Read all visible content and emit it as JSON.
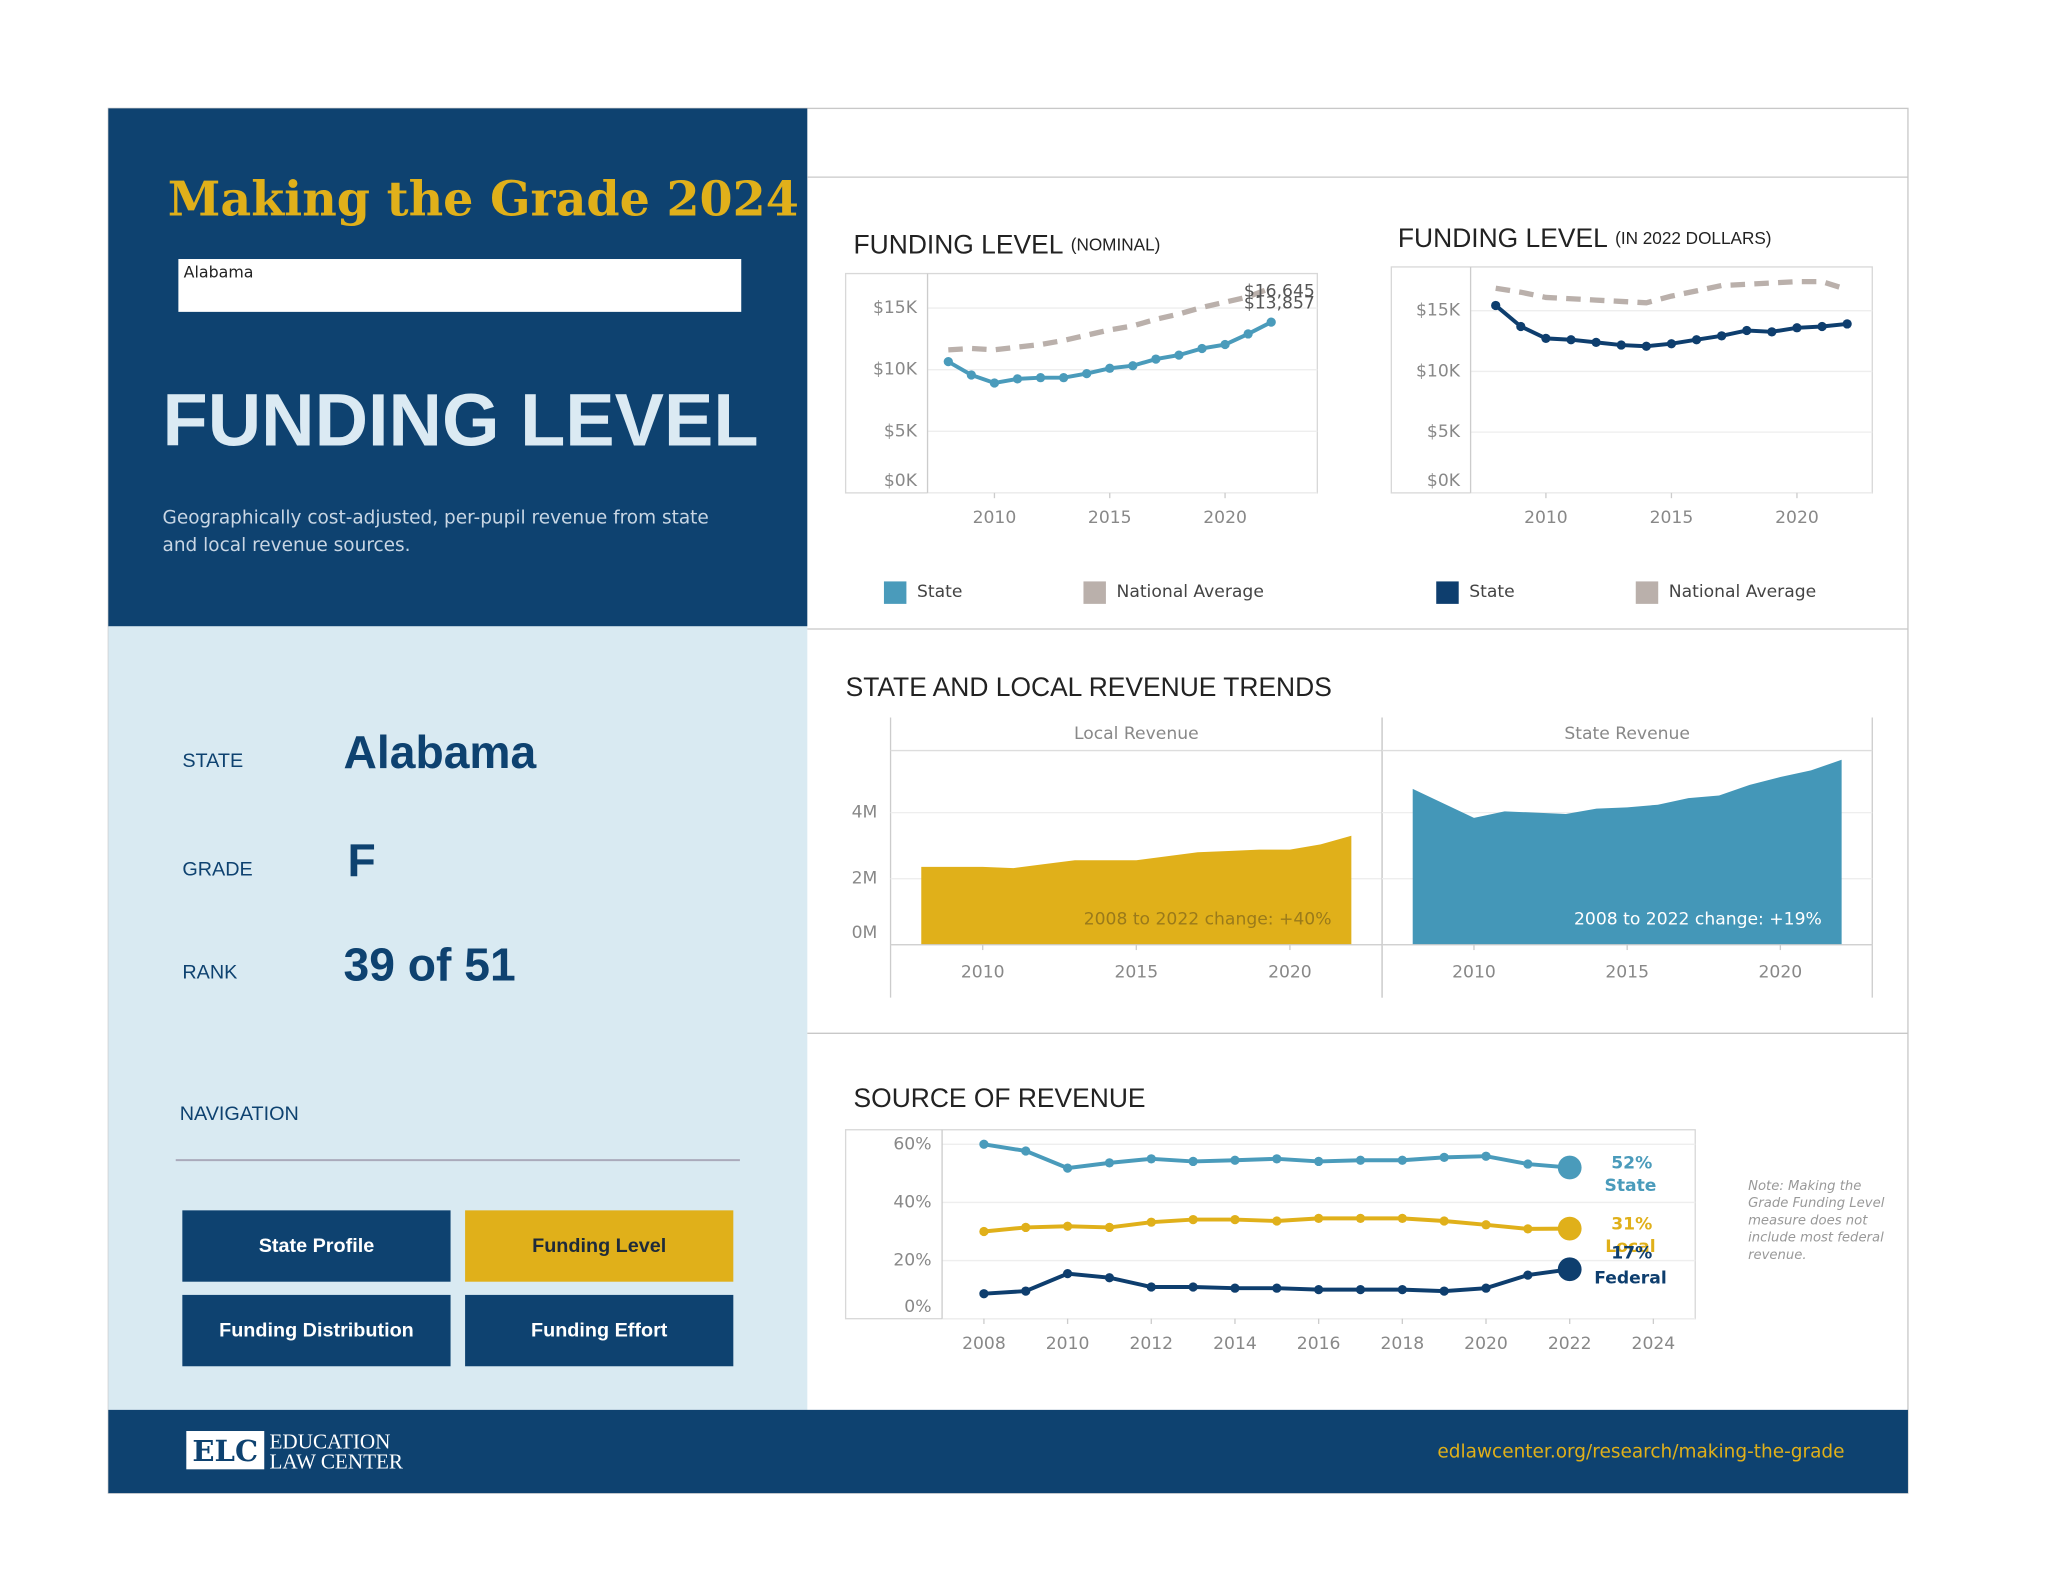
{
  "header": {
    "title": "Making the Grade 2024",
    "state_select": "Alabama",
    "page_title": "FUNDING LEVEL",
    "description": [
      "Geographically cost-adjusted, per-pupil revenue from state",
      "and local revenue sources."
    ]
  },
  "profile": {
    "rows": [
      {
        "label": "STATE",
        "value": "Alabama"
      },
      {
        "label": "GRADE",
        "value": "F"
      },
      {
        "label": "RANK",
        "value": "39 of 51"
      }
    ]
  },
  "navigation": {
    "label": "NAVIGATION",
    "buttons": [
      "State Profile",
      "Funding Level",
      "Funding Distribution",
      "Funding Effort"
    ],
    "active": 1
  },
  "note": [
    "Note: Making the",
    "Grade Funding Level",
    "measure does not",
    "include most federal",
    "revenue."
  ],
  "footer": {
    "logo": "ELC",
    "org": [
      "EDUCATION",
      "LAW CENTER"
    ],
    "url": "edlawcenter.org/research/making-the-grade"
  },
  "chart_data": [
    {
      "type": "line",
      "title": "FUNDING LEVEL",
      "subtitle": "(NOMINAL)",
      "x": [
        2008,
        2009,
        2010,
        2011,
        2012,
        2013,
        2014,
        2015,
        2016,
        2017,
        2018,
        2019,
        2020,
        2021,
        2022
      ],
      "xlim": [
        2007.1,
        2024
      ],
      "xticks": [
        2010,
        2015,
        2020
      ],
      "ylim": [
        0,
        17800
      ],
      "yticks": [
        {
          "value": 0,
          "label": "$0K"
        },
        {
          "value": 5000,
          "label": "$5K"
        },
        {
          "value": 10000,
          "label": "$10K"
        },
        {
          "value": 15000,
          "label": "$15K"
        }
      ],
      "grid": true,
      "legend": "bottom",
      "series": [
        {
          "name": "State",
          "color": "#4a9bbb",
          "style": "solid",
          "values": [
            10650,
            9570,
            8920,
            9250,
            9350,
            9350,
            9680,
            10110,
            10320,
            10860,
            11180,
            11720,
            12040,
            12900,
            13857
          ],
          "value_labels": [
            null,
            null,
            null,
            null,
            null,
            null,
            null,
            null,
            null,
            null,
            null,
            null,
            null,
            null,
            "$13,857"
          ]
        },
        {
          "name": "National Average",
          "color": "#bab0ab",
          "style": "dashed",
          "values": [
            11610,
            11720,
            11610,
            11830,
            12040,
            12370,
            12800,
            13230,
            13550,
            14090,
            14520,
            15050,
            15480,
            15910,
            16645
          ],
          "value_labels": [
            null,
            null,
            null,
            null,
            null,
            null,
            null,
            null,
            null,
            null,
            null,
            null,
            null,
            null,
            "$16,645"
          ]
        }
      ]
    },
    {
      "type": "line",
      "title": "FUNDING LEVEL",
      "subtitle": "(IN 2022 DOLLARS)",
      "x": [
        2008,
        2009,
        2010,
        2011,
        2012,
        2013,
        2014,
        2015,
        2016,
        2017,
        2018,
        2019,
        2020,
        2021,
        2022
      ],
      "xlim": [
        2007,
        2023
      ],
      "xticks": [
        2010,
        2015,
        2020
      ],
      "ylim": [
        0,
        18600
      ],
      "yticks": [
        {
          "value": 0,
          "label": "$0K"
        },
        {
          "value": 5000,
          "label": "$5K"
        },
        {
          "value": 10000,
          "label": "$10K"
        },
        {
          "value": 15000,
          "label": "$15K"
        }
      ],
      "grid": true,
      "legend": "bottom",
      "series": [
        {
          "name": "State",
          "color": "#0e3e6e",
          "style": "solid",
          "values": [
            15430,
            13700,
            12720,
            12610,
            12390,
            12170,
            12070,
            12280,
            12610,
            12930,
            13370,
            13260,
            13590,
            13700,
            13910
          ]
        },
        {
          "name": "National Average",
          "color": "#bab0ab",
          "style": "dashed",
          "values": [
            16850,
            16520,
            16090,
            15980,
            15870,
            15760,
            15650,
            16200,
            16630,
            17070,
            17170,
            17280,
            17390,
            17390,
            16740
          ]
        }
      ]
    },
    {
      "type": "area",
      "title": "STATE AND LOCAL REVENUE TRENDS",
      "x": [
        2008,
        2009,
        2010,
        2011,
        2012,
        2013,
        2014,
        2015,
        2016,
        2017,
        2018,
        2019,
        2020,
        2021,
        2022
      ],
      "xlim": [
        2007,
        2023
      ],
      "xticks": [
        2010,
        2015,
        2020
      ],
      "ylim": [
        0,
        5880000
      ],
      "yticks": [
        {
          "value": 0,
          "label": "0M"
        },
        {
          "value": 2000000,
          "label": "2M"
        },
        {
          "value": 4000000,
          "label": "4M"
        }
      ],
      "grid": true,
      "facets": [
        {
          "name": "Local Revenue",
          "color": "#e0b01a",
          "values": [
            2360000,
            2360000,
            2360000,
            2320000,
            2440000,
            2560000,
            2560000,
            2560000,
            2680000,
            2800000,
            2840000,
            2880000,
            2880000,
            3040000,
            3300000
          ],
          "annotation": "2008 to 2022 change: +40%"
        },
        {
          "name": "State Revenue",
          "color": "#4497b8",
          "values": [
            4720000,
            4280000,
            3840000,
            4040000,
            4000000,
            3960000,
            4120000,
            4160000,
            4240000,
            4440000,
            4520000,
            4840000,
            5080000,
            5280000,
            5600000
          ],
          "annotation": "2008 to 2022 change: +19%"
        }
      ]
    },
    {
      "type": "line",
      "title": "SOURCE OF REVENUE",
      "x": [
        2008,
        2009,
        2010,
        2011,
        2012,
        2013,
        2014,
        2015,
        2016,
        2017,
        2018,
        2019,
        2020,
        2021,
        2022
      ],
      "xlim": [
        2007,
        2025
      ],
      "xticks": [
        2008,
        2010,
        2012,
        2014,
        2016,
        2018,
        2020,
        2022,
        2024
      ],
      "ylim": [
        0,
        65
      ],
      "yticks": [
        {
          "value": 0,
          "label": "0%"
        },
        {
          "value": 20,
          "label": "20%"
        },
        {
          "value": 40,
          "label": "40%"
        },
        {
          "value": 60,
          "label": "60%"
        }
      ],
      "grid": true,
      "legend": "end-labels",
      "series": [
        {
          "name": "State",
          "color": "#4a9bbb",
          "style": "solid",
          "values": [
            60,
            57.7,
            51.8,
            53.6,
            55,
            54.1,
            54.5,
            55,
            54.1,
            54.5,
            54.5,
            55.5,
            55.9,
            53.2,
            52
          ],
          "value_labels": [
            null,
            null,
            null,
            null,
            null,
            null,
            null,
            null,
            null,
            null,
            null,
            null,
            null,
            null,
            "52%"
          ]
        },
        {
          "name": "Local",
          "color": "#e0b01a",
          "style": "solid",
          "values": [
            30,
            31.4,
            31.8,
            31.4,
            33.2,
            34.1,
            34.1,
            33.6,
            34.5,
            34.5,
            34.5,
            33.6,
            32.3,
            30.9,
            31
          ],
          "value_labels": [
            null,
            null,
            null,
            null,
            null,
            null,
            null,
            null,
            null,
            null,
            null,
            null,
            null,
            null,
            "31%"
          ]
        },
        {
          "name": "Federal",
          "color": "#0e3e6e",
          "style": "solid",
          "values": [
            8.6,
            9.5,
            15.5,
            14.1,
            10.9,
            10.9,
            10.5,
            10.5,
            10,
            10,
            10,
            9.5,
            10.5,
            15,
            17
          ],
          "value_labels": [
            null,
            null,
            null,
            null,
            null,
            null,
            null,
            null,
            null,
            null,
            null,
            null,
            null,
            null,
            "17%"
          ]
        }
      ]
    }
  ]
}
